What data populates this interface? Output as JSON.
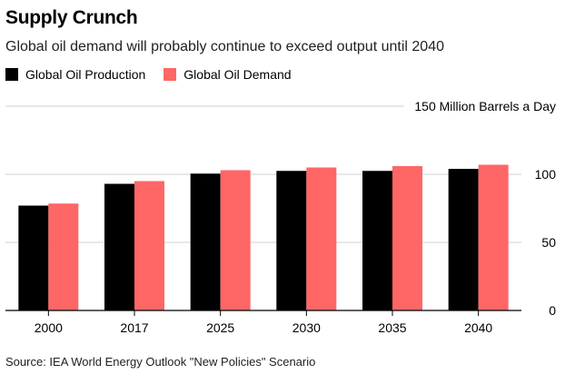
{
  "chart_data": {
    "type": "bar",
    "title": "Supply Crunch",
    "subtitle": "Global oil demand will probably continue to exceed output until 2040",
    "categories": [
      "2000",
      "2017",
      "2025",
      "2030",
      "2035",
      "2040"
    ],
    "series": [
      {
        "name": "Global Oil Production",
        "color": "#000000",
        "values": [
          77,
          93,
          100.5,
          102.5,
          102.5,
          104
        ]
      },
      {
        "name": "Global Oil Demand",
        "color": "#ff6666",
        "values": [
          78.5,
          95,
          103,
          105,
          106,
          107
        ]
      }
    ],
    "ylim": [
      0,
      150
    ],
    "yticks": [
      0,
      50,
      100
    ],
    "top_tick_label": "150 Million Barrels a Day",
    "xlabel": "",
    "ylabel": "",
    "grid": true,
    "legend_position": "top-left",
    "source": "Source: IEA World Energy Outlook \"New Policies\" Scenario"
  }
}
